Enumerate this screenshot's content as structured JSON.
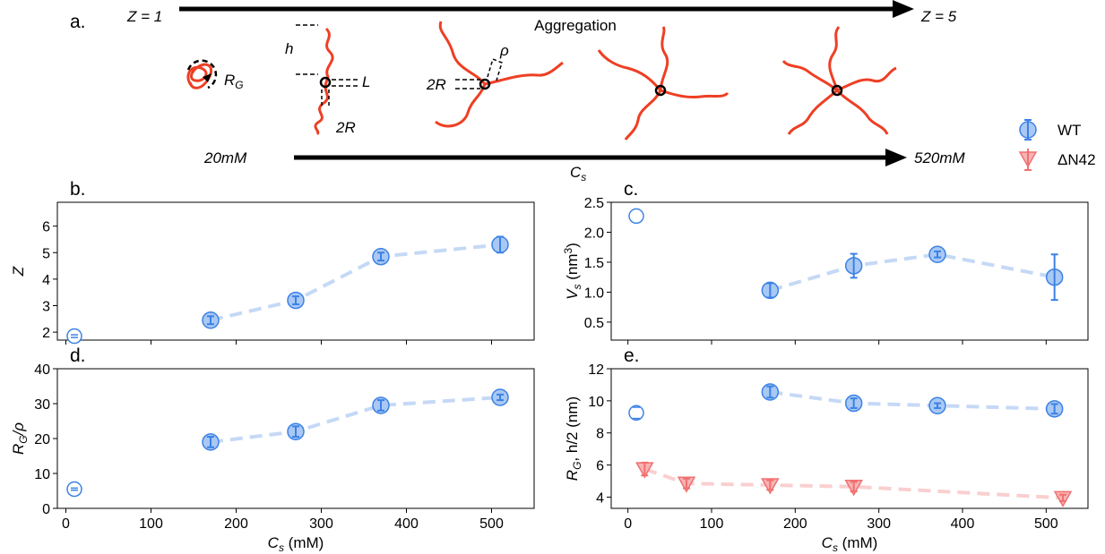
{
  "schematic": {
    "panel_label": "a.",
    "arrow_top": {
      "left_text": "Z = 1",
      "right_text": "Z = 5",
      "caption": "Aggregation"
    },
    "arrow_bottom": {
      "left_text": "20mM",
      "right_text": "520mM",
      "caption_main": "C",
      "caption_sub": "s"
    },
    "labels": {
      "rg_main": "R",
      "rg_sub": "G",
      "h": "h",
      "L": "L",
      "two_r_1": "2R",
      "two_r_2": "2R",
      "rho": "ρ"
    },
    "chain_color": "#ee3f24"
  },
  "legend": {
    "items": [
      {
        "label": "WT",
        "color": "#3b82e6",
        "marker": "circle"
      },
      {
        "label": "ΔN42",
        "color": "#f07070",
        "marker": "triangle-down"
      }
    ]
  },
  "colors": {
    "wt": "#3b82e6",
    "wt_fill": "#a9c8f3",
    "wt_line": "#c5d9f6",
    "dn42": "#f07070",
    "dn42_fill": "#f7b3b3",
    "dn42_line": "#f9cfcf"
  },
  "chart_data": [
    {
      "panel": "b.",
      "type": "scatter",
      "xlabel_main": "",
      "xlabel_sub": "",
      "xlabel_unit": "",
      "ylabel": "Z",
      "xlim": [
        -10,
        550
      ],
      "ylim": [
        1.7,
        6.9
      ],
      "yticks": [
        "2",
        "3",
        "4",
        "5",
        "6"
      ],
      "ytick_values": [
        2,
        3,
        4,
        5,
        6
      ],
      "xticks": [],
      "xtick_values": [
        0,
        100,
        200,
        300,
        400,
        500
      ],
      "series": [
        {
          "name": "WT",
          "marker": "circle",
          "open_points": [
            {
              "x": 10,
              "y": 1.85,
              "err": 0.05
            }
          ],
          "points": [
            {
              "x": 170,
              "y": 2.45,
              "err": 0.15
            },
            {
              "x": 270,
              "y": 3.2,
              "err": 0.15
            },
            {
              "x": 370,
              "y": 4.85,
              "err": 0.15
            },
            {
              "x": 510,
              "y": 5.3,
              "err": 0.3
            }
          ]
        }
      ]
    },
    {
      "panel": "c.",
      "type": "scatter",
      "xlabel_main": "",
      "xlabel_sub": "",
      "xlabel_unit": "",
      "ylabel": "V_s (nm^3)",
      "ylabel_parts": [
        "V",
        "s",
        " (nm",
        "3",
        ")"
      ],
      "xlim": [
        -20,
        550
      ],
      "ylim": [
        0.2,
        2.5
      ],
      "yticks": [
        "0.5",
        "1.0",
        "1.5",
        "2.0",
        "2.5"
      ],
      "ytick_values": [
        0.5,
        1.0,
        1.5,
        2.0,
        2.5
      ],
      "xticks": [],
      "xtick_values": [
        0,
        100,
        200,
        300,
        400,
        500
      ],
      "series": [
        {
          "name": "WT",
          "marker": "circle",
          "open_points": [
            {
              "x": 10,
              "y": 2.27,
              "err": 0.0
            }
          ],
          "points": [
            {
              "x": 170,
              "y": 1.03,
              "err": 0.12
            },
            {
              "x": 270,
              "y": 1.44,
              "err": 0.2
            },
            {
              "x": 370,
              "y": 1.63,
              "err": 0.05
            },
            {
              "x": 510,
              "y": 1.25,
              "err": 0.38
            }
          ]
        }
      ]
    },
    {
      "panel": "d.",
      "type": "scatter",
      "xlabel_main": "C",
      "xlabel_sub": "s",
      "xlabel_unit": " (mM)",
      "ylabel": "R_G/ρ",
      "ylabel_parts": [
        "R",
        "G",
        "/ρ"
      ],
      "xlim": [
        -10,
        550
      ],
      "ylim": [
        0,
        40
      ],
      "yticks": [
        "0",
        "10",
        "20",
        "30",
        "40"
      ],
      "ytick_values": [
        0,
        10,
        20,
        30,
        40
      ],
      "xticks": [
        "0",
        "100",
        "200",
        "300",
        "400",
        "500"
      ],
      "xtick_values": [
        0,
        100,
        200,
        300,
        400,
        500
      ],
      "series": [
        {
          "name": "WT",
          "marker": "circle",
          "open_points": [
            {
              "x": 10,
              "y": 5.5,
              "err": 0.3
            }
          ],
          "points": [
            {
              "x": 170,
              "y": 19.0,
              "err": 1.5
            },
            {
              "x": 270,
              "y": 22.0,
              "err": 1.5
            },
            {
              "x": 370,
              "y": 29.5,
              "err": 1.5
            },
            {
              "x": 510,
              "y": 31.8,
              "err": 0.8
            }
          ]
        }
      ]
    },
    {
      "panel": "e.",
      "type": "scatter",
      "xlabel_main": "C",
      "xlabel_sub": "s",
      "xlabel_unit": " (mM)",
      "ylabel": "R_G, h/2 (nm)",
      "ylabel_parts": [
        "R",
        "G",
        ", h/2 (nm)"
      ],
      "xlim": [
        -20,
        550
      ],
      "ylim": [
        3.3,
        12
      ],
      "yticks": [
        "4",
        "6",
        "8",
        "10",
        "12"
      ],
      "ytick_values": [
        4,
        6,
        8,
        10,
        12
      ],
      "xticks": [
        "0",
        "100",
        "200",
        "300",
        "400",
        "500"
      ],
      "xtick_values": [
        0,
        100,
        200,
        300,
        400,
        500
      ],
      "series": [
        {
          "name": "WT",
          "marker": "circle",
          "open_points": [
            {
              "x": 10,
              "y": 9.25,
              "err": 0.35
            }
          ],
          "points": [
            {
              "x": 170,
              "y": 10.55,
              "err": 0.35
            },
            {
              "x": 270,
              "y": 9.85,
              "err": 0.3
            },
            {
              "x": 370,
              "y": 9.7,
              "err": 0.15
            },
            {
              "x": 510,
              "y": 9.5,
              "err": 0.3
            }
          ]
        },
        {
          "name": "ΔN42",
          "marker": "triangle-down",
          "open_points": [],
          "points": [
            {
              "x": 20,
              "y": 5.75,
              "err": 0.4
            },
            {
              "x": 70,
              "y": 4.85,
              "err": 0.3
            },
            {
              "x": 170,
              "y": 4.75,
              "err": 0.3
            },
            {
              "x": 270,
              "y": 4.65,
              "err": 0.3
            },
            {
              "x": 520,
              "y": 3.95,
              "err": 0.2
            }
          ]
        }
      ]
    }
  ]
}
